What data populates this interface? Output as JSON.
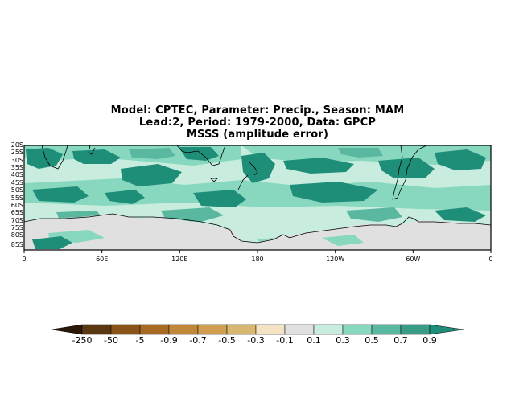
{
  "title": {
    "line1": "Model: CPTEC, Parameter: Precip., Season: MAM",
    "line2": "Lead:2, Period: 1979-2000, Data: GPCP",
    "line3": "MSSS (amplitude error)"
  },
  "map": {
    "lat_labels": [
      "20S",
      "25S",
      "30S",
      "35S",
      "40S",
      "45S",
      "50S",
      "55S",
      "60S",
      "65S",
      "70S",
      "75S",
      "80S",
      "85S"
    ],
    "lon_labels": [
      "0",
      "60E",
      "120E",
      "180",
      "120W",
      "60W",
      "0"
    ]
  },
  "colorbar": {
    "labels": [
      "-250",
      "-50",
      "-5",
      "-0.9",
      "-0.7",
      "-0.5",
      "-0.3",
      "-0.1",
      "0.1",
      "0.3",
      "0.5",
      "0.7",
      "0.9"
    ],
    "colors": [
      "#2a1808",
      "#5a3812",
      "#8a5418",
      "#a86a22",
      "#c08838",
      "#d8b870",
      "#f4e4c4",
      "#e0e0e0",
      "#c8ecde",
      "#88d8c0",
      "#5ab8a0",
      "#389c86",
      "#1e8e78"
    ]
  },
  "colors": {
    "neutral": "#e0e0e0",
    "light_teal": "#c8ecde",
    "mid_teal": "#88d8c0",
    "teal": "#5ab8a0",
    "dark_teal": "#1e8e78"
  }
}
